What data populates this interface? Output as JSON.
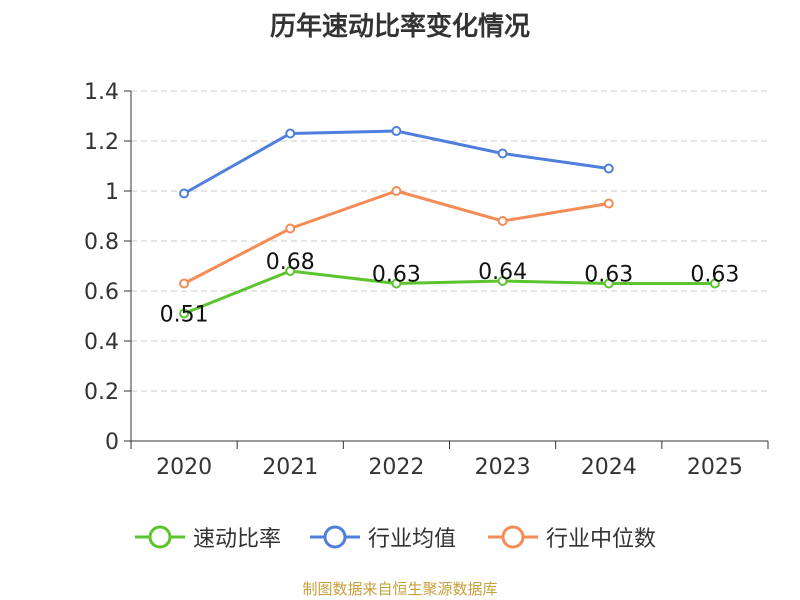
{
  "chart_data": {
    "type": "line",
    "title": "历年速动比率变化情况",
    "categories": [
      "2020",
      "2021",
      "2022",
      "2023",
      "2024",
      "2025"
    ],
    "ylim": [
      0,
      1.4
    ],
    "yticks": [
      "0",
      "0.2",
      "0.4",
      "0.6",
      "0.8",
      "1",
      "1.2",
      "1.4"
    ],
    "grid": true,
    "legend_position": "bottom",
    "series": [
      {
        "name": "速动比率",
        "color": "#5cc42e",
        "values": [
          0.51,
          0.68,
          0.63,
          0.64,
          0.63,
          0.63
        ],
        "labels": [
          "0.51",
          "0.68",
          "0.63",
          "0.64",
          "0.63",
          "0.63"
        ]
      },
      {
        "name": "行业均值",
        "color": "#4f7fdc",
        "values": [
          0.99,
          1.23,
          1.24,
          1.15,
          1.09,
          null
        ]
      },
      {
        "name": "行业中位数",
        "color": "#f58b55",
        "values": [
          0.63,
          0.85,
          1.0,
          0.88,
          0.95,
          null
        ]
      }
    ]
  },
  "source": "制图数据来自恒生聚源数据库"
}
